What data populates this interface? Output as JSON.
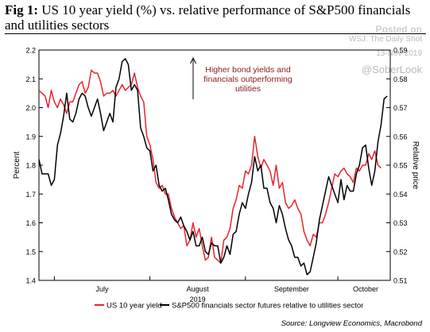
{
  "header": {
    "fig_label": "Fig 1:",
    "title": "US 10 year yield (%) vs. relative performance of S&P500 financials and utilities sectors"
  },
  "watermark": {
    "posted": "Posted on",
    "outlet": "WSJ: The Daily Shot",
    "date": "13-Nov-2019",
    "handle": "@SoberLook"
  },
  "annotation": {
    "text_lines": [
      "Higher bond yields and",
      "financials outperforming",
      "utilities"
    ]
  },
  "source": "Source: Longview Economics, Macrobond",
  "colors": {
    "red_series": "#e8242c",
    "black_series": "#000000",
    "annotation": "#8b1a1a"
  },
  "chart_data": {
    "type": "line",
    "title": "US 10 year yield (%) vs. relative performance of S&P500 financials and utilities sectors",
    "xlabel": "2019",
    "ylabel": "Percent",
    "y2label": "Relative price",
    "x_ticks": [
      "July",
      "August",
      "September",
      "October"
    ],
    "ylim": [
      1.4,
      2.2
    ],
    "yticks": [
      "1.4",
      "1.5",
      "1.6",
      "1.7",
      "1.8",
      "1.9",
      "2.0",
      "2.1",
      "2.2"
    ],
    "y2lim": [
      0.51,
      0.59
    ],
    "y2ticks": [
      "0.51",
      "0.52",
      "0.53",
      "0.54",
      "0.55",
      "0.56",
      "0.57",
      "0.58",
      "0.59"
    ],
    "grid": false,
    "legend": "bottom",
    "x_range_days": [
      0,
      114
    ],
    "series": [
      {
        "name": "US 10 year yield",
        "axis": "left",
        "color": "#e8242c",
        "x": [
          0,
          1,
          2,
          3,
          4,
          5,
          6,
          7,
          8,
          9,
          10,
          11,
          12,
          13,
          14,
          15,
          16,
          17,
          18,
          19,
          20,
          21,
          22,
          23,
          24,
          25,
          26,
          27,
          28,
          29,
          30,
          31,
          32,
          33,
          34,
          35,
          36,
          37,
          38,
          39,
          40,
          41,
          42,
          43,
          44,
          45,
          46,
          47,
          48,
          49,
          50,
          51,
          52,
          53,
          54,
          55,
          56,
          57,
          58,
          59,
          60,
          61,
          62,
          63,
          64,
          65,
          66,
          67,
          68,
          69,
          70,
          71,
          72,
          73,
          74,
          75,
          76,
          77,
          78,
          79,
          80,
          81,
          82,
          83,
          84,
          85,
          86,
          87,
          88,
          89,
          90,
          91,
          92,
          93,
          94,
          95,
          96,
          97,
          98,
          99,
          100,
          101,
          102,
          103,
          104,
          105,
          106,
          107,
          108,
          109,
          110,
          111
        ],
        "values": [
          2.06,
          2.05,
          2.04,
          2.0,
          2.06,
          2.02,
          2.0,
          2.03,
          2.01,
          1.98,
          2.02,
          2.02,
          2.05,
          2.08,
          2.09,
          2.05,
          2.07,
          2.13,
          2.12,
          2.12,
          2.09,
          2.04,
          2.05,
          2.05,
          2.06,
          2.04,
          2.06,
          2.08,
          2.06,
          2.07,
          2.08,
          2.12,
          2.07,
          2.04,
          2.02,
          1.9,
          1.87,
          1.82,
          1.74,
          1.72,
          1.73,
          1.7,
          1.7,
          1.65,
          1.62,
          1.6,
          1.58,
          1.59,
          1.52,
          1.54,
          1.6,
          1.55,
          1.58,
          1.52,
          1.47,
          1.48,
          1.55,
          1.48,
          1.47,
          1.46,
          1.54,
          1.55,
          1.58,
          1.65,
          1.68,
          1.73,
          1.72,
          1.78,
          1.77,
          1.8,
          1.9,
          1.83,
          1.79,
          1.82,
          1.8,
          1.78,
          1.73,
          1.8,
          1.72,
          1.74,
          1.67,
          1.65,
          1.66,
          1.68,
          1.65,
          1.63,
          1.57,
          1.54,
          1.52,
          1.56,
          1.55,
          1.6,
          1.6,
          1.63,
          1.67,
          1.72,
          1.77,
          1.76,
          1.78,
          1.79,
          1.77,
          1.76,
          1.74,
          1.79,
          1.78,
          1.8,
          1.8,
          1.84,
          1.82,
          1.85,
          1.8,
          1.79
        ]
      },
      {
        "name": "S&P500 financials sector futures relative to utilities sector",
        "axis": "right",
        "color": "#000000",
        "x": [
          0,
          1,
          2,
          3,
          4,
          5,
          6,
          7,
          8,
          9,
          10,
          11,
          12,
          13,
          14,
          15,
          16,
          17,
          18,
          19,
          20,
          21,
          22,
          23,
          24,
          25,
          26,
          27,
          28,
          29,
          30,
          31,
          32,
          33,
          34,
          35,
          36,
          37,
          38,
          39,
          40,
          41,
          42,
          43,
          44,
          45,
          46,
          47,
          48,
          49,
          50,
          51,
          52,
          53,
          54,
          55,
          56,
          57,
          58,
          59,
          60,
          61,
          62,
          63,
          64,
          65,
          66,
          67,
          68,
          69,
          70,
          71,
          72,
          73,
          74,
          75,
          76,
          77,
          78,
          79,
          80,
          81,
          82,
          83,
          84,
          85,
          86,
          87,
          88,
          89,
          90,
          91,
          92,
          93,
          94,
          95,
          96,
          97,
          98,
          99,
          100,
          101,
          102,
          103,
          104,
          105,
          106,
          107,
          108,
          109,
          110,
          111,
          112,
          113
        ],
        "values": [
          0.552,
          0.547,
          0.547,
          0.547,
          0.543,
          0.545,
          0.557,
          0.561,
          0.567,
          0.575,
          0.566,
          0.565,
          0.568,
          0.573,
          0.575,
          0.574,
          0.57,
          0.567,
          0.57,
          0.573,
          0.568,
          0.562,
          0.565,
          0.568,
          0.565,
          0.577,
          0.58,
          0.586,
          0.587,
          0.585,
          0.576,
          0.578,
          0.576,
          0.563,
          0.56,
          0.556,
          0.555,
          0.548,
          0.55,
          0.543,
          0.541,
          0.542,
          0.538,
          0.533,
          0.531,
          0.53,
          0.532,
          0.529,
          0.527,
          0.524,
          0.527,
          0.522,
          0.522,
          0.525,
          0.52,
          0.519,
          0.523,
          0.522,
          0.522,
          0.516,
          0.518,
          0.522,
          0.519,
          0.526,
          0.527,
          0.533,
          0.537,
          0.535,
          0.54,
          0.544,
          0.553,
          0.548,
          0.55,
          0.542,
          0.542,
          0.537,
          0.535,
          0.53,
          0.536,
          0.533,
          0.528,
          0.524,
          0.522,
          0.518,
          0.518,
          0.515,
          0.516,
          0.512,
          0.513,
          0.518,
          0.523,
          0.531,
          0.536,
          0.541,
          0.546,
          0.543,
          0.54,
          0.537,
          0.545,
          0.538,
          0.543,
          0.541,
          0.541,
          0.547,
          0.55,
          0.556,
          0.557,
          0.549,
          0.543,
          0.548,
          0.558,
          0.564,
          0.573,
          0.574
        ]
      }
    ]
  }
}
